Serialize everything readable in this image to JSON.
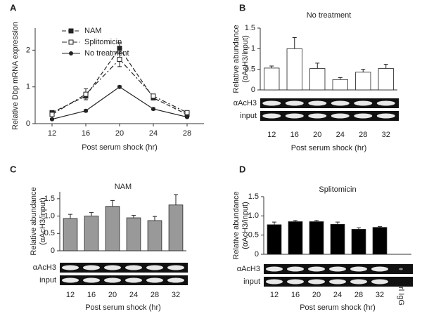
{
  "chart_data": [
    {
      "type": "line",
      "panel": "A",
      "ylabel": "Relative Dbp mRNA expression",
      "xlabel": "Post serum shock (hr)",
      "x": [
        12,
        16,
        20,
        24,
        28
      ],
      "xlim": [
        10,
        30
      ],
      "xticks": [
        12,
        16,
        20,
        24,
        28
      ],
      "ylim": [
        0,
        2.6
      ],
      "yticks": [
        0,
        1,
        2
      ],
      "legend": "upper left",
      "series": [
        {
          "name": "NAM",
          "color": "#222222",
          "dash": "dashed",
          "marker": "filled-square",
          "values": [
            0.3,
            0.75,
            2.05,
            0.7,
            0.25
          ],
          "errors": [
            0.05,
            0.1,
            0.15,
            0.05,
            0.03
          ]
        },
        {
          "name": "Splitomicin",
          "color": "#222222",
          "dash": "dash-dot",
          "marker": "open-square",
          "values": [
            0.25,
            0.8,
            1.75,
            0.75,
            0.3
          ],
          "errors": [
            0.05,
            0.15,
            0.2,
            0.05,
            0.03
          ]
        },
        {
          "name": "No treatment",
          "color": "#222222",
          "dash": "solid",
          "marker": "circle",
          "values": [
            0.12,
            0.35,
            1.0,
            0.4,
            0.18
          ],
          "errors": [
            0.02,
            0.03,
            0.03,
            0.03,
            0.02
          ]
        }
      ]
    },
    {
      "type": "bar",
      "panel": "B",
      "title": "No treatment",
      "ylabel": [
        "Relative abundance",
        "(αAcH3/input)"
      ],
      "xlabel": "Post serum shock (hr)",
      "categories": [
        "12",
        "16",
        "20",
        "24",
        "28",
        "32"
      ],
      "values": [
        0.53,
        1.0,
        0.52,
        0.25,
        0.43,
        0.52
      ],
      "errors": [
        0.05,
        0.27,
        0.13,
        0.05,
        0.07,
        0.1
      ],
      "color": "#ffffff",
      "ylim": [
        0,
        1.5
      ],
      "yticks": [
        0,
        0.5,
        1,
        1.5
      ],
      "gel_rows": [
        "αAcH3",
        "input"
      ]
    },
    {
      "type": "bar",
      "panel": "C",
      "title": "NAM",
      "ylabel": [
        "Relative abundance",
        "(αAcH3/input)"
      ],
      "xlabel": "Post serum shock (hr)",
      "categories": [
        "12",
        "16",
        "20",
        "24",
        "28",
        "32"
      ],
      "values": [
        0.93,
        1.0,
        1.28,
        0.95,
        0.87,
        1.32
      ],
      "errors": [
        0.12,
        0.1,
        0.17,
        0.07,
        0.12,
        0.3
      ],
      "color": "#999999",
      "ylim": [
        0,
        1.7
      ],
      "yticks": [
        0,
        0.5,
        {
          "value": 1,
          "label": "1.0"
        },
        1.5
      ],
      "gel_rows": [
        "αAcH3",
        "input"
      ]
    },
    {
      "type": "bar",
      "panel": "D",
      "title": "Splitomicin",
      "ylabel": [
        "Relative abundance",
        "(αAcH3/input)"
      ],
      "xlabel": "Post serum shock (hr)",
      "categories": [
        "12",
        "16",
        "20",
        "24",
        "28",
        "32",
        "Ctrl IgG"
      ],
      "values": [
        0.77,
        0.85,
        0.85,
        0.78,
        0.65,
        0.7,
        null
      ],
      "errors": [
        0.07,
        0.03,
        0.03,
        0.06,
        0.04,
        0.02,
        null
      ],
      "color": "#000000",
      "ylim": [
        0,
        1.5
      ],
      "yticks": [
        0,
        0.5,
        {
          "value": 1,
          "label": "1.0"
        },
        1.5
      ],
      "gel_rows": [
        "αAcH3",
        "input"
      ]
    }
  ]
}
